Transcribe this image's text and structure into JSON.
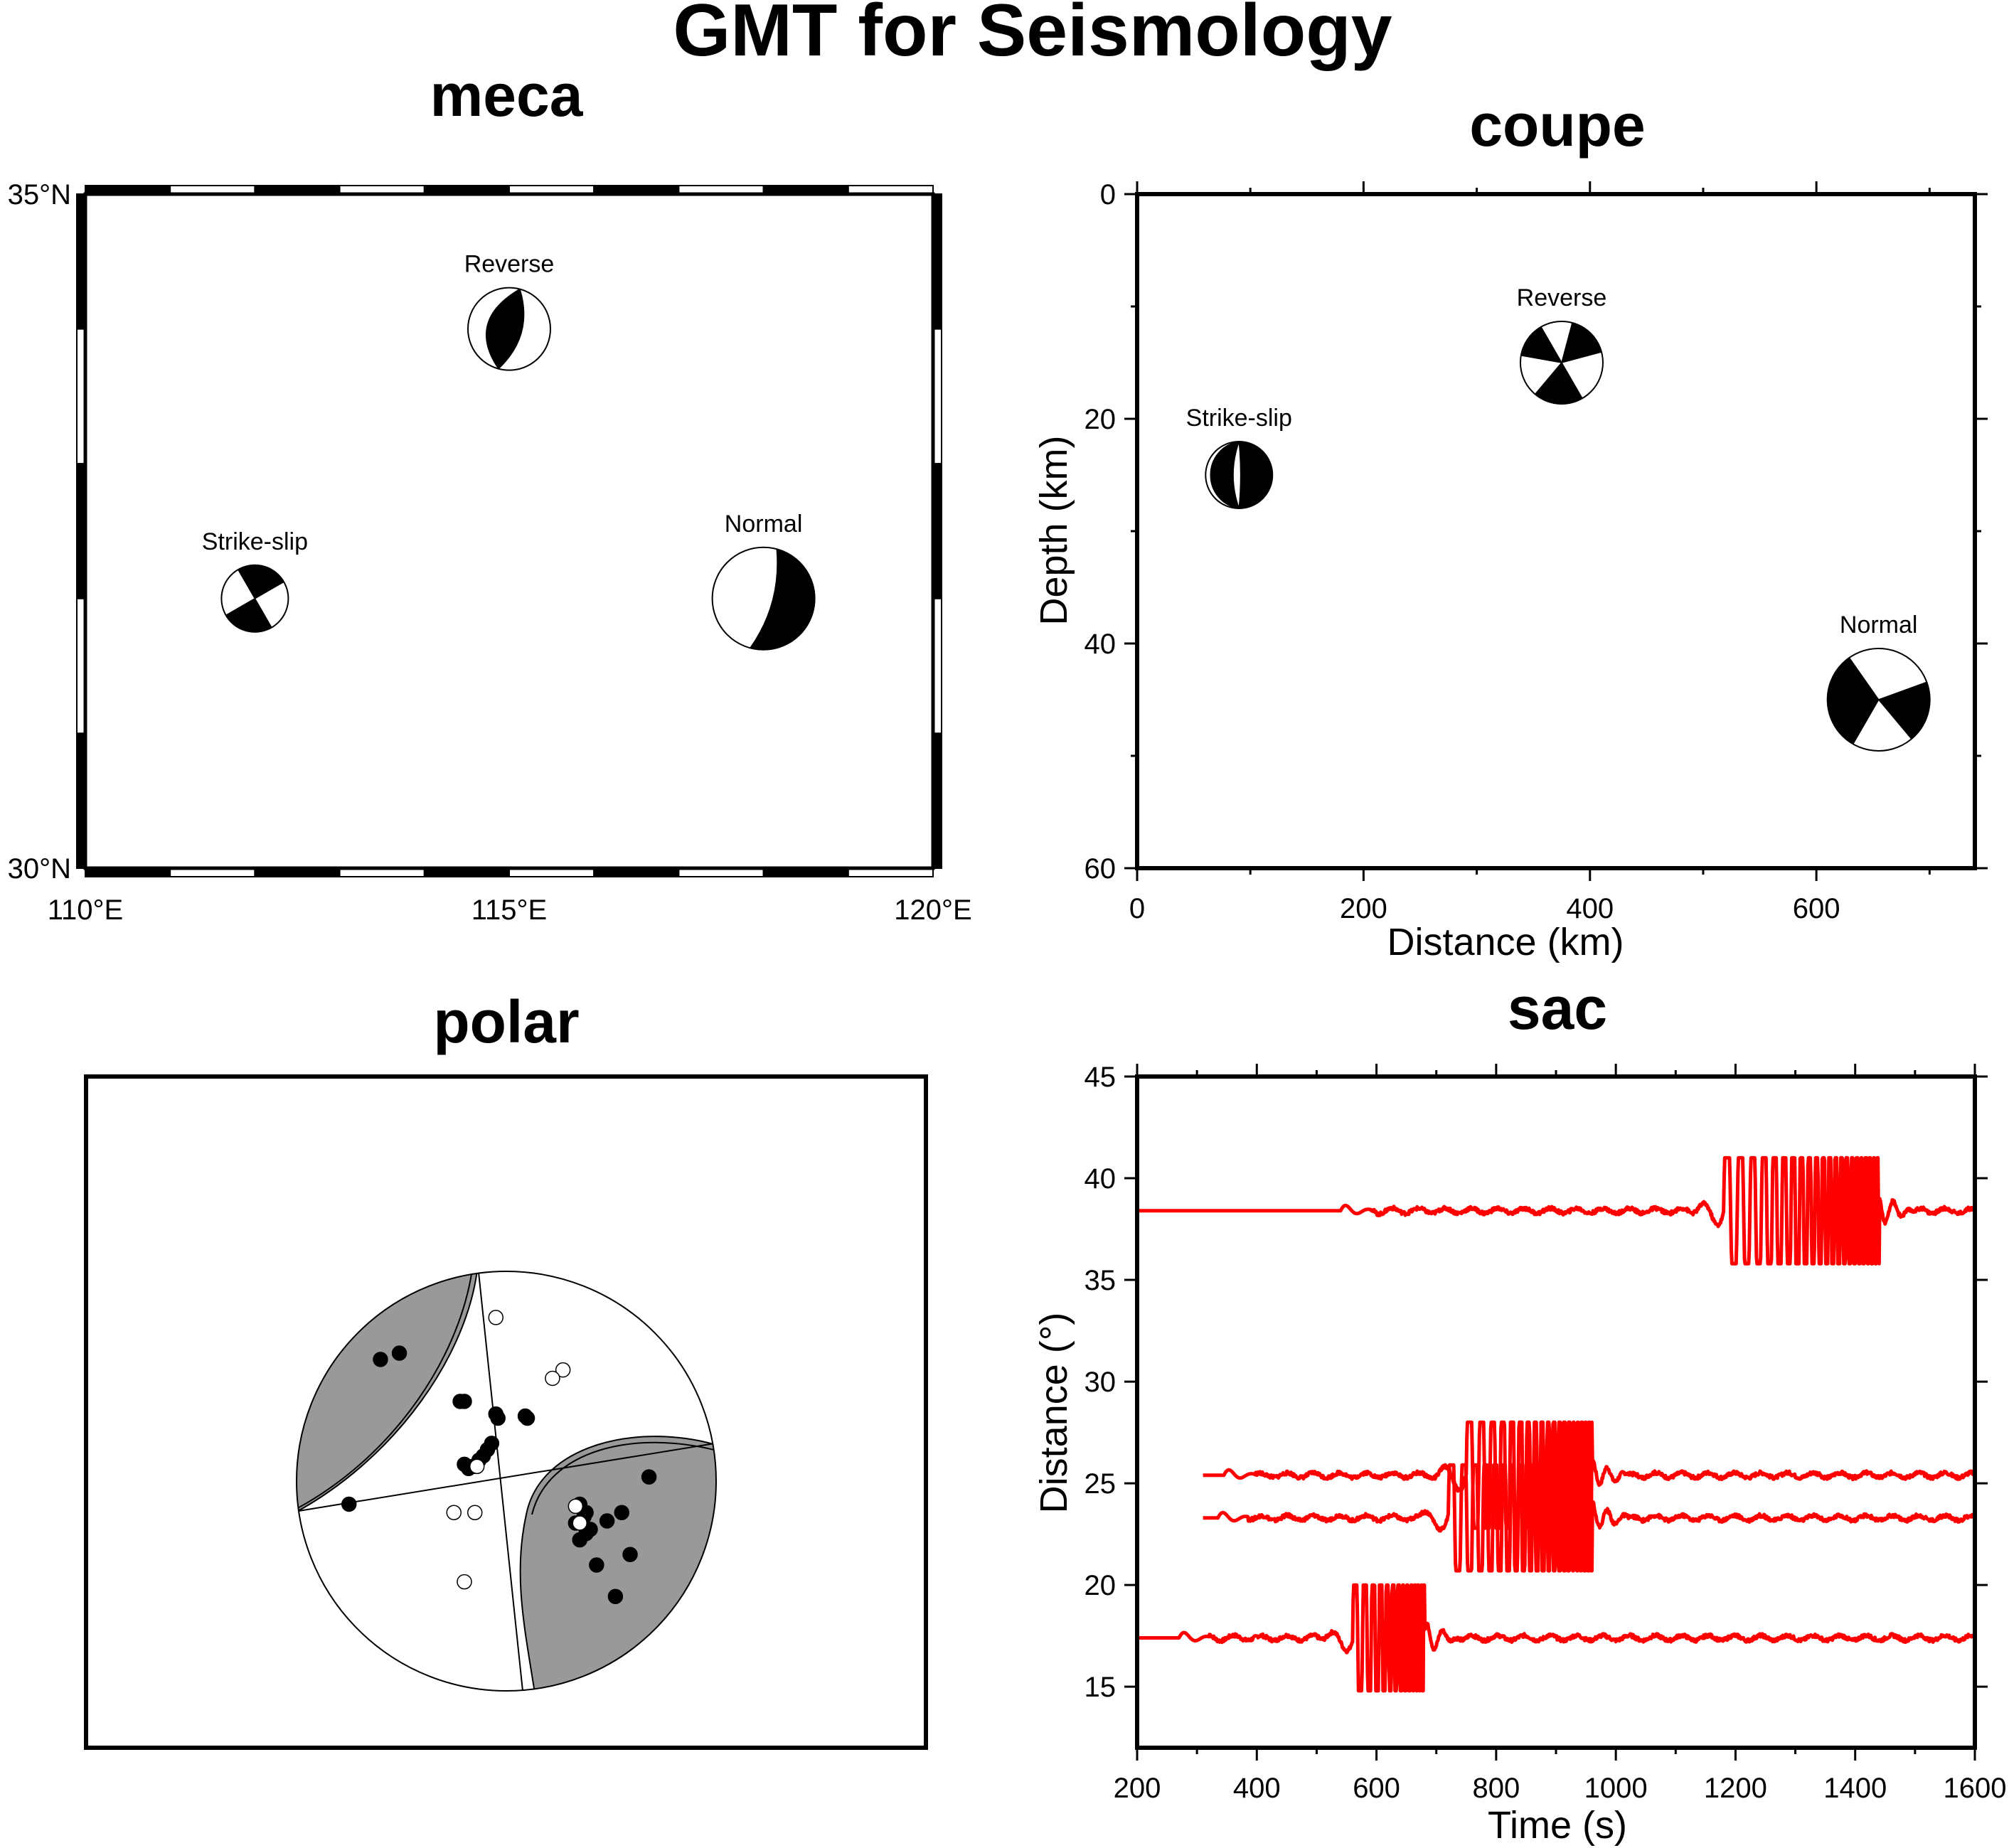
{
  "figure": {
    "title": "GMT for Seismology"
  },
  "chart_data": [
    {
      "panel": "meca",
      "type": "scatter",
      "title": "meca",
      "x_ticks": [
        "110°E",
        "115°E",
        "120°E"
      ],
      "y_ticks": [
        "30°N",
        "35°N"
      ],
      "xlim": [
        110,
        120
      ],
      "ylim": [
        30,
        35
      ],
      "frame": "fancy",
      "events": [
        {
          "label": "Strike-slip",
          "lon": 112.0,
          "lat": 32.0,
          "mechanism": "strike-slip"
        },
        {
          "label": "Reverse",
          "lon": 115.0,
          "lat": 34.0,
          "mechanism": "reverse"
        },
        {
          "label": "Normal",
          "lon": 118.0,
          "lat": 32.0,
          "mechanism": "normal"
        }
      ]
    },
    {
      "panel": "coupe",
      "type": "scatter",
      "title": "coupe",
      "xlabel": "Distance (km)",
      "ylabel": "Depth (km)",
      "x_ticks": [
        "0",
        "200",
        "400",
        "600"
      ],
      "y_ticks": [
        "0",
        "20",
        "40",
        "60"
      ],
      "xlim": [
        0,
        740
      ],
      "ylim": [
        60,
        0
      ],
      "events": [
        {
          "label": "Strike-slip",
          "distance": 90,
          "depth": 25,
          "mechanism": "strike-slip-side"
        },
        {
          "label": "Reverse",
          "distance": 375,
          "depth": 15,
          "mechanism": "reverse-oblique"
        },
        {
          "label": "Normal",
          "distance": 655,
          "depth": 45,
          "mechanism": "normal-oblique"
        }
      ]
    },
    {
      "panel": "polar",
      "type": "scatter",
      "title": "polar",
      "compressional_color": "#999999",
      "polarity_up": [
        [
          -0.6,
          0.58
        ],
        [
          -0.51,
          0.61
        ],
        [
          -0.07,
          0.18
        ],
        [
          -0.09,
          0.15
        ],
        [
          -0.11,
          0.12
        ],
        [
          -0.13,
          0.1
        ],
        [
          -0.16,
          0.07
        ],
        [
          -0.18,
          0.06
        ],
        [
          -0.2,
          0.08
        ],
        [
          -0.05,
          0.32
        ],
        [
          -0.04,
          0.3
        ],
        [
          0.1,
          0.3
        ],
        [
          0.09,
          0.31
        ],
        [
          0.37,
          -0.17
        ],
        [
          0.36,
          -0.19
        ],
        [
          0.38,
          -0.15
        ],
        [
          0.35,
          -0.11
        ],
        [
          0.4,
          -0.23
        ],
        [
          0.33,
          -0.2
        ],
        [
          0.48,
          -0.19
        ],
        [
          0.55,
          -0.15
        ],
        [
          0.38,
          -0.25
        ],
        [
          0.35,
          -0.28
        ],
        [
          0.43,
          -0.4
        ],
        [
          0.59,
          -0.35
        ],
        [
          0.68,
          0.02
        ],
        [
          0.52,
          -0.55
        ],
        [
          -0.75,
          -0.11
        ],
        [
          -0.2,
          0.38
        ],
        [
          -0.22,
          0.38
        ]
      ],
      "polarity_down": [
        [
          -0.05,
          0.78
        ],
        [
          0.27,
          0.53
        ],
        [
          0.22,
          0.49
        ],
        [
          -0.25,
          -0.15
        ],
        [
          -0.15,
          -0.15
        ],
        [
          -0.2,
          -0.48
        ],
        [
          0.33,
          -0.12
        ],
        [
          0.35,
          -0.2
        ],
        [
          -0.14,
          0.07
        ]
      ]
    },
    {
      "panel": "sac",
      "type": "line",
      "title": "sac",
      "xlabel": "Time (s)",
      "ylabel": "Distance (°)",
      "x_ticks": [
        "200",
        "400",
        "600",
        "800",
        "1000",
        "1200",
        "1400",
        "1600"
      ],
      "y_ticks": [
        "15",
        "20",
        "25",
        "30",
        "35",
        "40",
        "45"
      ],
      "xlim": [
        200,
        1600
      ],
      "ylim": [
        12,
        45
      ],
      "line_color": "#ff0000",
      "series": [
        {
          "offset": 17.4,
          "start": 200,
          "p_time": 270,
          "surface_start": 560,
          "surface_end": 680,
          "clip": 2.6,
          "period": 18
        },
        {
          "offset": 23.3,
          "start": 310,
          "p_time": 335,
          "surface_start": 720,
          "surface_end": 960,
          "clip": 2.6,
          "period": 22
        },
        {
          "offset": 25.4,
          "start": 310,
          "p_time": 345,
          "surface_start": 750,
          "surface_end": 960,
          "clip": 2.6,
          "period": 22
        },
        {
          "offset": 38.4,
          "start": 200,
          "p_time": 540,
          "surface_start": 1180,
          "surface_end": 1440,
          "clip": 2.6,
          "period": 24
        }
      ]
    }
  ]
}
